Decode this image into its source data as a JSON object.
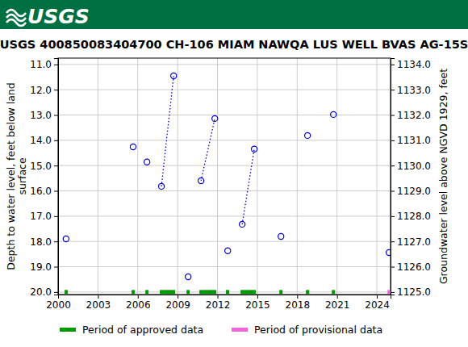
{
  "chart_data": {
    "type": "scatter",
    "logo_text": "USGS",
    "title": "USGS 400850083404700 CH-106 MIAM NAWQA LUS WELL BVAS AG-15S",
    "ylabel": [
      "Depth to water level, feet below land",
      "surface"
    ],
    "y2label": "Groundwater level above NGVD 1929, feet",
    "xlim": [
      2000,
      2025.03
    ],
    "xticks": [
      2000,
      2003,
      2006,
      2009,
      2012,
      2015,
      2018,
      2021,
      2024
    ],
    "ylim": [
      10.75,
      20.1
    ],
    "yticks": [
      {
        "value": 11,
        "label": "11.0"
      },
      {
        "value": 12,
        "label": "12.0"
      },
      {
        "value": 13,
        "label": "13.0"
      },
      {
        "value": 14,
        "label": "14.0"
      },
      {
        "value": 15,
        "label": "15.0"
      },
      {
        "value": 16,
        "label": "16.0"
      },
      {
        "value": 17,
        "label": "17.0"
      },
      {
        "value": 18,
        "label": "18.0"
      },
      {
        "value": 19,
        "label": "19.0"
      },
      {
        "value": 20,
        "label": "20.0"
      }
    ],
    "y2lim": [
      1134.25,
      1124.9
    ],
    "y2ticks": [
      {
        "value": 1125,
        "label": "1125.0"
      },
      {
        "value": 1126,
        "label": "1126.0"
      },
      {
        "value": 1127,
        "label": "1127.0"
      },
      {
        "value": 1128,
        "label": "1128.0"
      },
      {
        "value": 1129,
        "label": "1129.0"
      },
      {
        "value": 1130,
        "label": "1130.0"
      },
      {
        "value": 1131,
        "label": "1131.0"
      },
      {
        "value": 1132,
        "label": "1132.0"
      },
      {
        "value": 1133,
        "label": "1133.0"
      },
      {
        "value": 1134,
        "label": "1134.0"
      }
    ],
    "grid": true,
    "series": [
      {
        "color": "#0000cc",
        "marker": "circle",
        "line_style": "dotted",
        "x": [
          2000.6,
          null,
          2005.65,
          null,
          2006.69,
          null,
          2007.78,
          2008.7,
          null,
          2009.79,
          null,
          2010.76,
          2011.8,
          null,
          2012.77,
          null,
          2013.86,
          2014.77,
          null,
          2016.78,
          null,
          2018.78,
          null,
          2020.73,
          null,
          2024.92
        ],
        "values": [
          17.9,
          null,
          14.26,
          null,
          14.86,
          null,
          15.82,
          11.45,
          null,
          19.4,
          null,
          15.6,
          13.14,
          null,
          18.37,
          null,
          17.32,
          14.35,
          null,
          17.8,
          null,
          13.81,
          null,
          12.98,
          null,
          18.44
        ]
      }
    ],
    "periods": [
      {
        "name": "Period of approved data",
        "color": "#009900",
        "level": 20,
        "ranges": [
          [
            2000.49,
            2000.73
          ],
          [
            2005.53,
            2005.78
          ],
          [
            2006.57,
            2006.81
          ],
          [
            2007.66,
            2008.81
          ],
          [
            2009.67,
            2009.91
          ],
          [
            2010.64,
            2011.91
          ],
          [
            2012.64,
            2012.89
          ],
          [
            2013.74,
            2014.89
          ],
          [
            2016.66,
            2016.9
          ],
          [
            2018.66,
            2018.91
          ],
          [
            2020.61,
            2020.85
          ]
        ]
      },
      {
        "name": "Period of provisional data",
        "color": "#ee66dd",
        "level": 20,
        "ranges": [
          [
            2024.8,
            2025.0
          ]
        ]
      }
    ]
  }
}
